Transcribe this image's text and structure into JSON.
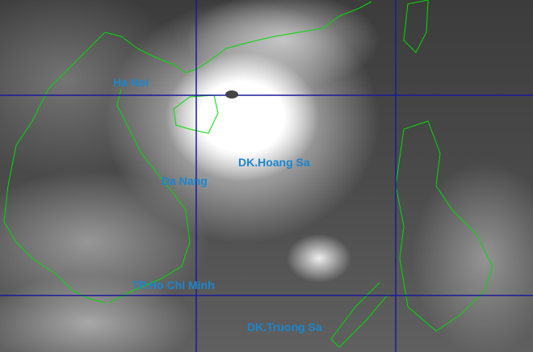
{
  "image": {
    "kind": "satellite infrared image",
    "subject": "typhoon over the South China Sea"
  },
  "labels": {
    "ha_noi": "Ha Noi",
    "da_nang": "Da Nang",
    "hoang_sa": "DK.Hoang Sa",
    "ho_chi_minh": "TP.Ho Chi Minh",
    "truong_sa": "DK.Truong Sa"
  },
  "colors": {
    "label": "#1a86d0",
    "coastline": "#00dd00",
    "gridline": "#1a1a9a"
  }
}
